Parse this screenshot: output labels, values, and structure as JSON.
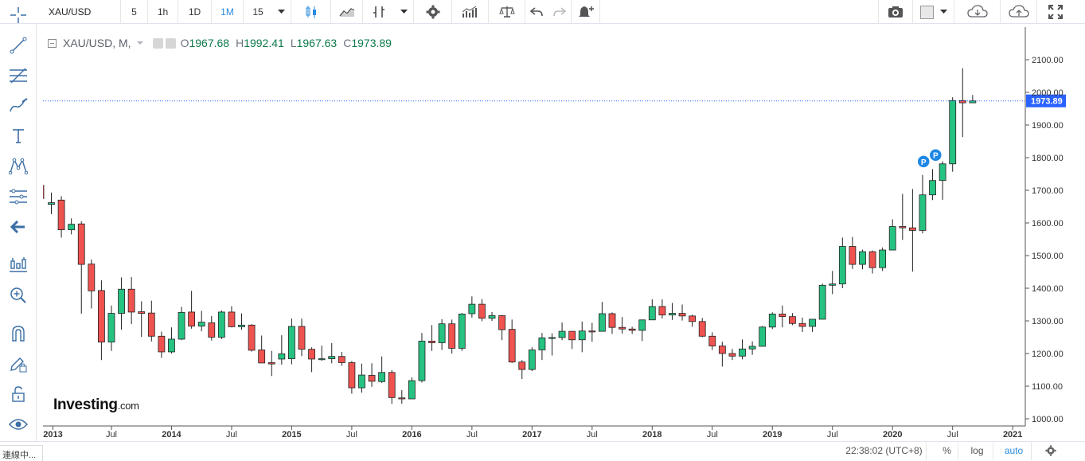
{
  "toolbar": {
    "symbol": "XAU/USD",
    "intervals": [
      "5",
      "1h",
      "1D",
      "1M",
      "15"
    ],
    "active_interval": "1M",
    "icons": [
      "candles-icon",
      "line-style-icon",
      "indicators-icon",
      "settings-icon",
      "study-templates-icon",
      "compare-icon",
      "undo-icon",
      "redo-icon",
      "alert-icon",
      "screenshot-icon",
      "color-box-icon",
      "cloud-download-icon",
      "cloud-upload-icon",
      "fullscreen-icon"
    ]
  },
  "legend": {
    "symbol": "XAU/USD, M,",
    "o_label": "O",
    "o": "1967.68",
    "h_label": "H",
    "h": "1992.41",
    "l_label": "L",
    "l": "1967.63",
    "c_label": "C",
    "c": "1973.89"
  },
  "price_axis": {
    "ticks": [
      "2100.00",
      "2000.00",
      "1900.00",
      "1800.00",
      "1700.00",
      "1600.00",
      "1500.00",
      "1400.00",
      "1300.00",
      "1200.00",
      "1100.00",
      "1000.00"
    ],
    "last_price": "1973.89",
    "last_price_color": "#2962ff"
  },
  "time_axis": {
    "ticks": [
      "2013",
      "Jul",
      "2014",
      "Jul",
      "2015",
      "Jul",
      "2016",
      "Jul",
      "2017",
      "Jul",
      "2018",
      "Jul",
      "2019",
      "Jul",
      "2020",
      "Jul",
      "2021"
    ]
  },
  "bottombar": {
    "time": "22:38:02 (UTC+8)",
    "percent": "%",
    "log": "log",
    "auto": "auto"
  },
  "status_text": "連線中...",
  "logo": {
    "brand": "Investing",
    "suffix": ".com"
  },
  "markers": [
    "P",
    "P"
  ],
  "colors": {
    "up": "#26c281",
    "down": "#ef5350",
    "accent": "#2b8cdf"
  },
  "chart_data": {
    "type": "candlestick",
    "ylim": [
      970,
      2150
    ],
    "start": "2013-01",
    "ohlc": [
      [
        1657,
        1693,
        1627,
        1662
      ],
      [
        1670,
        1682,
        1555,
        1579
      ],
      [
        1579,
        1614,
        1565,
        1596
      ],
      [
        1597,
        1605,
        1322,
        1473
      ],
      [
        1474,
        1488,
        1338,
        1392
      ],
      [
        1393,
        1424,
        1180,
        1235
      ],
      [
        1235,
        1347,
        1208,
        1323
      ],
      [
        1323,
        1433,
        1273,
        1397
      ],
      [
        1397,
        1434,
        1290,
        1327
      ],
      [
        1328,
        1360,
        1251,
        1323
      ],
      [
        1324,
        1362,
        1237,
        1253
      ],
      [
        1253,
        1267,
        1187,
        1205
      ],
      [
        1205,
        1280,
        1200,
        1244
      ],
      [
        1244,
        1343,
        1241,
        1326
      ],
      [
        1327,
        1392,
        1276,
        1284
      ],
      [
        1284,
        1331,
        1268,
        1296
      ],
      [
        1294,
        1315,
        1240,
        1250
      ],
      [
        1250,
        1332,
        1244,
        1327
      ],
      [
        1327,
        1345,
        1280,
        1282
      ],
      [
        1282,
        1323,
        1273,
        1287
      ],
      [
        1287,
        1290,
        1206,
        1210
      ],
      [
        1211,
        1255,
        1180,
        1171
      ],
      [
        1172,
        1208,
        1131,
        1168
      ],
      [
        1183,
        1256,
        1166,
        1199
      ],
      [
        1184,
        1307,
        1167,
        1283
      ],
      [
        1283,
        1307,
        1192,
        1213
      ],
      [
        1213,
        1219,
        1143,
        1183
      ],
      [
        1183,
        1224,
        1178,
        1184
      ],
      [
        1184,
        1232,
        1170,
        1191
      ],
      [
        1191,
        1205,
        1162,
        1172
      ],
      [
        1172,
        1177,
        1077,
        1095
      ],
      [
        1095,
        1169,
        1080,
        1134
      ],
      [
        1133,
        1170,
        1098,
        1115
      ],
      [
        1114,
        1191,
        1110,
        1142
      ],
      [
        1142,
        1149,
        1046,
        1065
      ],
      [
        1064,
        1088,
        1046,
        1061
      ],
      [
        1061,
        1127,
        1061,
        1117
      ],
      [
        1117,
        1263,
        1111,
        1238
      ],
      [
        1238,
        1287,
        1208,
        1233
      ],
      [
        1233,
        1305,
        1211,
        1291
      ],
      [
        1291,
        1304,
        1200,
        1216
      ],
      [
        1216,
        1324,
        1208,
        1321
      ],
      [
        1322,
        1375,
        1310,
        1351
      ],
      [
        1351,
        1367,
        1299,
        1308
      ],
      [
        1308,
        1327,
        1300,
        1316
      ],
      [
        1316,
        1318,
        1241,
        1273
      ],
      [
        1274,
        1304,
        1171,
        1174
      ],
      [
        1174,
        1180,
        1122,
        1151
      ],
      [
        1151,
        1219,
        1146,
        1211
      ],
      [
        1211,
        1263,
        1180,
        1248
      ],
      [
        1249,
        1262,
        1194,
        1249
      ],
      [
        1249,
        1295,
        1241,
        1268
      ],
      [
        1268,
        1268,
        1214,
        1242
      ],
      [
        1242,
        1298,
        1204,
        1269
      ],
      [
        1269,
        1294,
        1236,
        1268
      ],
      [
        1268,
        1358,
        1267,
        1322
      ],
      [
        1322,
        1326,
        1260,
        1280
      ],
      [
        1280,
        1312,
        1261,
        1275
      ],
      [
        1275,
        1282,
        1260,
        1271
      ],
      [
        1271,
        1303,
        1238,
        1303
      ],
      [
        1303,
        1366,
        1303,
        1344
      ],
      [
        1344,
        1366,
        1307,
        1318
      ],
      [
        1318,
        1355,
        1303,
        1323
      ],
      [
        1323,
        1350,
        1301,
        1315
      ],
      [
        1315,
        1319,
        1282,
        1298
      ],
      [
        1298,
        1309,
        1250,
        1253
      ],
      [
        1253,
        1265,
        1211,
        1223
      ],
      [
        1223,
        1236,
        1160,
        1200
      ],
      [
        1200,
        1214,
        1180,
        1192
      ],
      [
        1192,
        1243,
        1182,
        1214
      ],
      [
        1214,
        1237,
        1196,
        1222
      ],
      [
        1222,
        1284,
        1221,
        1281
      ],
      [
        1281,
        1326,
        1275,
        1321
      ],
      [
        1321,
        1347,
        1280,
        1313
      ],
      [
        1313,
        1324,
        1287,
        1292
      ],
      [
        1292,
        1310,
        1266,
        1283
      ],
      [
        1283,
        1305,
        1266,
        1305
      ],
      [
        1305,
        1414,
        1306,
        1409
      ],
      [
        1409,
        1453,
        1382,
        1413
      ],
      [
        1413,
        1555,
        1400,
        1528
      ],
      [
        1528,
        1557,
        1459,
        1473
      ],
      [
        1473,
        1518,
        1458,
        1512
      ],
      [
        1512,
        1516,
        1445,
        1463
      ],
      [
        1463,
        1525,
        1453,
        1517
      ],
      [
        1517,
        1611,
        1517,
        1589
      ],
      [
        1589,
        1689,
        1548,
        1585
      ],
      [
        1585,
        1704,
        1451,
        1577
      ],
      [
        1577,
        1747,
        1568,
        1686
      ],
      [
        1686,
        1765,
        1670,
        1730
      ],
      [
        1730,
        1789,
        1671,
        1781
      ],
      [
        1781,
        1985,
        1757,
        1975
      ],
      [
        1975,
        2074,
        1863,
        1968
      ],
      [
        1968,
        1992,
        1967,
        1974
      ]
    ]
  }
}
